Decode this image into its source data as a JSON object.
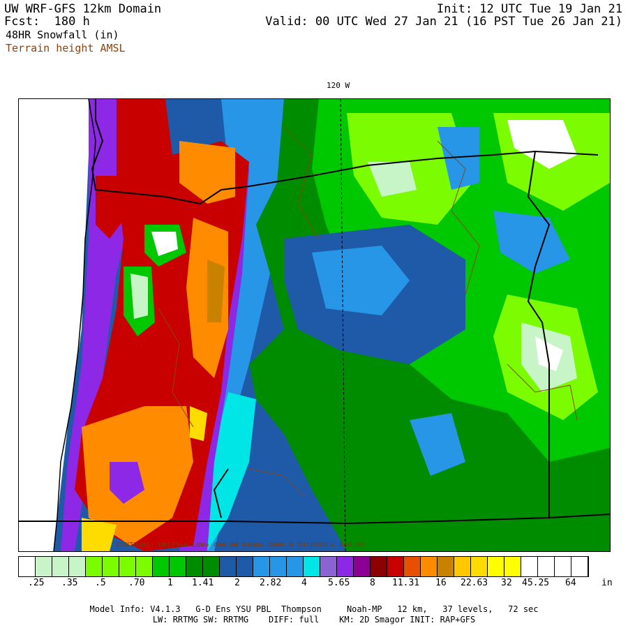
{
  "header": {
    "title": "UW WRF-GFS 12km Domain",
    "fcst": "Fcst:  180 h",
    "field": "48HR Snowfall (in)",
    "terrain": "Terrain height AMSL",
    "init": "Init: 12 UTC Tue 19 Jan 21",
    "valid": "Valid: 00 UTC Wed 27 Jan 21 (16 PST Tue 26 Jan 21)"
  },
  "map": {
    "lon_label": "120 W",
    "contour_note": "CONTOURS: UNITS=m  LOW=  400.00    HIGH= 4000.0    INTERVAL=  400.00"
  },
  "colorbar": {
    "colors": [
      "#ffffff",
      "#c8f5c8",
      "#c8f5c8",
      "#c8f5c8",
      "#7cfc00",
      "#7cfc00",
      "#7cfc00",
      "#7cfc00",
      "#00c800",
      "#00c800",
      "#008c00",
      "#008c00",
      "#1e5aa8",
      "#1e5aa8",
      "#2896e6",
      "#2896e6",
      "#2896e6",
      "#00e6e6",
      "#8c64d2",
      "#8c28e6",
      "#8c0096",
      "#8c0000",
      "#c80000",
      "#e65000",
      "#ff8c00",
      "#c88200",
      "#ffc800",
      "#ffdc00",
      "#ffff00",
      "#ffff00",
      "#ffffff",
      "#ffffff",
      "#ffffff",
      "#ffffff"
    ],
    "labels": [
      ".25",
      ".35",
      ".5",
      ".70",
      "1",
      "1.41",
      "2",
      "2.82",
      "4",
      "5.65",
      "8",
      "11.31",
      "16",
      "22.63",
      "32",
      "45.25",
      "64",
      "in"
    ]
  },
  "footer": {
    "line1": "Model Info: V4.1.3   G-D Ens YSU PBL  Thompson     Noah-MP   12 km,   37 levels,   72 sec",
    "line2": "LW: RRTMG SW: RRTMG    DIFF: full    KM: 2D Smagor INIT: RAP+GFS"
  }
}
